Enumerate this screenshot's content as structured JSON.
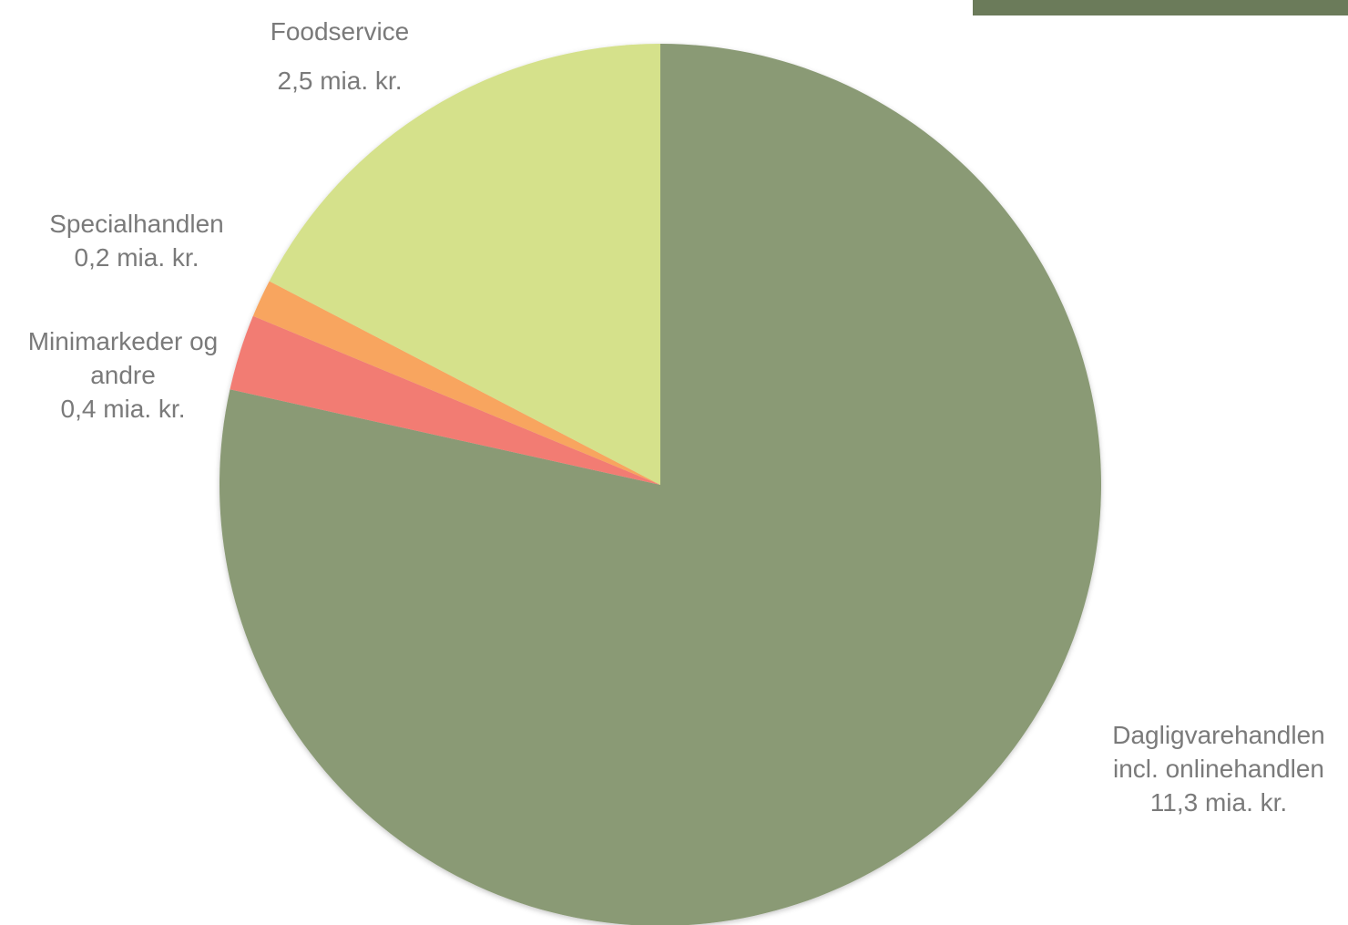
{
  "colors": {
    "background": "#ffffff",
    "corner_band": "#6b7b5a",
    "label_text": "#7a7a7a"
  },
  "chart_data": {
    "type": "pie",
    "title": "",
    "unit": "mia. kr.",
    "start_angle_deg": 0,
    "direction": "clockwise",
    "slices": [
      {
        "label_lines": [
          "Dagligvarehandlen",
          "incl. onlinehandlen"
        ],
        "value_text": "11,3 mia. kr.",
        "value": 11.3,
        "color": "#8a9a75"
      },
      {
        "label_lines": [
          "Minimarkeder og",
          "andre"
        ],
        "value_text": "0,4 mia. kr.",
        "value": 0.4,
        "color": "#f27c73"
      },
      {
        "label_lines": [
          "Specialhandlen"
        ],
        "value_text": "0,2 mia. kr.",
        "value": 0.2,
        "color": "#f8a55e"
      },
      {
        "label_lines": [
          "Foodservice"
        ],
        "value_text": "2,5 mia. kr.",
        "value": 2.5,
        "color": "#d5e18b"
      }
    ]
  }
}
